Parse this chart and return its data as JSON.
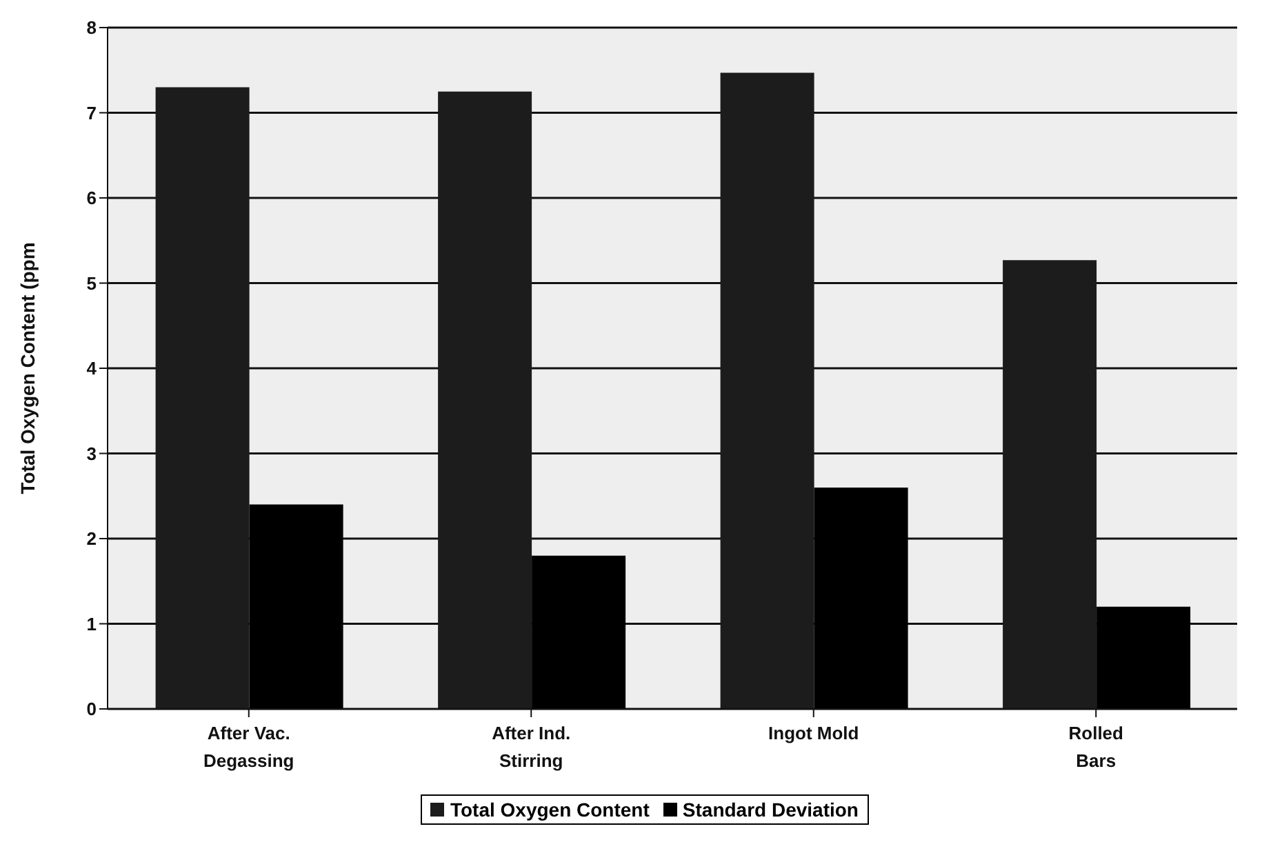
{
  "chart_data": {
    "type": "bar",
    "ylabel": "Total Oxygen Content (ppm",
    "categories": [
      "After Vac.\nDegassing",
      "After Ind.\nStirring",
      "Ingot Mold",
      "Rolled\nBars"
    ],
    "series": [
      {
        "name": "Total Oxygen Content",
        "color": "#1c1c1c",
        "values": [
          7.3,
          7.25,
          7.47,
          5.27
        ]
      },
      {
        "name": "Standard Deviation",
        "color": "#000000",
        "values": [
          2.4,
          1.8,
          2.6,
          1.2
        ]
      }
    ],
    "ylim": [
      0,
      8
    ],
    "yticks": [
      0,
      1,
      2,
      3,
      4,
      5,
      6,
      7,
      8
    ],
    "grid": "y",
    "legend": "bottom"
  }
}
